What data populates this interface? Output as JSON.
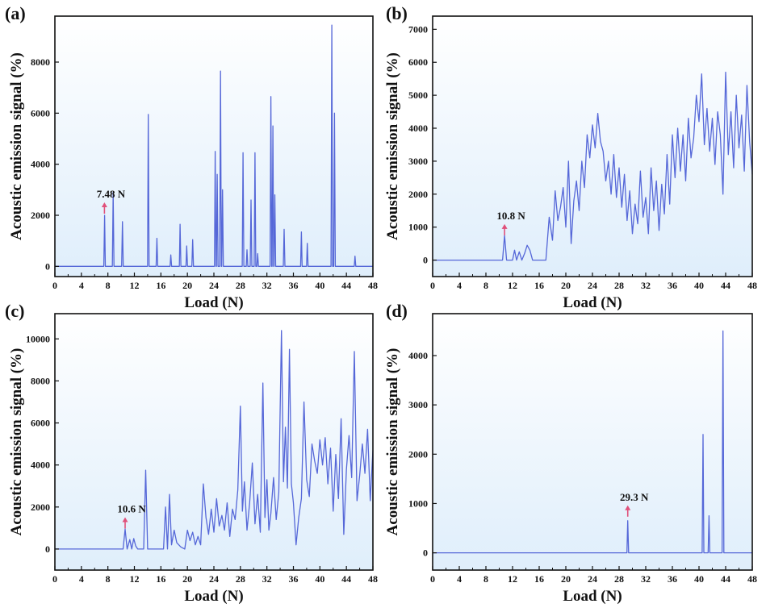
{
  "chart_data": [
    {
      "type": "line",
      "panel_label": "(a)",
      "xlabel": "Load (N)",
      "ylabel": "Acoustic emission signal (%)",
      "xlim": [
        0,
        48
      ],
      "ylim": [
        -400,
        9800
      ],
      "xticks": [
        0,
        4,
        8,
        12,
        16,
        20,
        24,
        28,
        32,
        36,
        40,
        44,
        48
      ],
      "yticks": [
        0,
        2000,
        4000,
        6000,
        8000
      ],
      "annotation": {
        "text": "7.48 N",
        "x": 7.48,
        "y": 2000
      },
      "peaks": [
        [
          7.5,
          2000
        ],
        [
          8.8,
          2900
        ],
        [
          10.2,
          1750
        ],
        [
          14.1,
          5950
        ],
        [
          15.4,
          1100
        ],
        [
          17.5,
          450
        ],
        [
          18.9,
          1650
        ],
        [
          19.9,
          800
        ],
        [
          20.8,
          1050
        ],
        [
          24.2,
          4500
        ],
        [
          24.5,
          3600
        ],
        [
          25.0,
          7650
        ],
        [
          25.3,
          3000
        ],
        [
          28.4,
          4450
        ],
        [
          29.0,
          650
        ],
        [
          29.6,
          2600
        ],
        [
          30.2,
          4450
        ],
        [
          30.6,
          500
        ],
        [
          32.6,
          6650
        ],
        [
          32.9,
          5500
        ],
        [
          33.2,
          2800
        ],
        [
          34.6,
          1450
        ],
        [
          37.2,
          1350
        ],
        [
          38.1,
          900
        ],
        [
          41.8,
          9450
        ],
        [
          42.2,
          6000
        ],
        [
          45.3,
          400
        ]
      ],
      "peak_width": 0.12
    },
    {
      "type": "line",
      "panel_label": "(b)",
      "xlabel": "Load (N)",
      "ylabel": "Acoustic emission signal (%)",
      "xlim": [
        0,
        48
      ],
      "ylim": [
        -500,
        7400
      ],
      "xticks": [
        0,
        4,
        8,
        12,
        16,
        20,
        24,
        28,
        32,
        36,
        40,
        44,
        48
      ],
      "yticks": [
        0,
        1000,
        2000,
        3000,
        4000,
        5000,
        6000,
        7000
      ],
      "annotation": {
        "text": "10.8 N",
        "x": 10.8,
        "y": 700
      },
      "x": [
        0,
        10.5,
        10.8,
        11.1,
        12.0,
        12.3,
        12.6,
        13.0,
        13.4,
        13.8,
        14.2,
        14.6,
        15.0,
        15.4,
        17.0,
        17.5,
        18.0,
        18.4,
        18.8,
        19.2,
        19.6,
        20.0,
        20.4,
        20.8,
        21.2,
        21.6,
        22.0,
        22.4,
        22.8,
        23.2,
        23.6,
        24.0,
        24.4,
        24.8,
        25.2,
        25.6,
        26.0,
        26.4,
        26.8,
        27.2,
        27.6,
        28.0,
        28.4,
        28.8,
        29.2,
        29.6,
        30.0,
        30.4,
        30.8,
        31.2,
        31.6,
        32.0,
        32.4,
        32.8,
        33.2,
        33.6,
        34.0,
        34.4,
        34.8,
        35.2,
        35.6,
        36.0,
        36.4,
        36.8,
        37.2,
        37.6,
        38.0,
        38.4,
        38.8,
        39.2,
        39.6,
        40.0,
        40.4,
        40.8,
        41.2,
        41.6,
        42.0,
        42.4,
        42.8,
        43.2,
        43.6,
        44.0,
        44.4,
        44.8,
        45.2,
        45.6,
        46.0,
        46.4,
        46.8,
        47.2,
        47.6,
        48.0
      ],
      "y": [
        0,
        0,
        750,
        0,
        0,
        300,
        0,
        250,
        0,
        200,
        450,
        300,
        0,
        0,
        0,
        1300,
        600,
        2100,
        1200,
        1600,
        2200,
        1000,
        3000,
        500,
        1800,
        2400,
        1500,
        3000,
        2200,
        3800,
        3100,
        4100,
        3400,
        4450,
        3600,
        3300,
        2400,
        3000,
        2000,
        3200,
        1900,
        2800,
        1600,
        2600,
        1200,
        2100,
        800,
        1700,
        1100,
        2700,
        1300,
        1900,
        800,
        2800,
        1500,
        2400,
        900,
        2300,
        1400,
        3200,
        1700,
        3800,
        2500,
        4000,
        2700,
        3800,
        2400,
        4300,
        3100,
        3700,
        5000,
        4200,
        5650,
        3500,
        4600,
        3300,
        4300,
        2900,
        4500,
        3800,
        2000,
        5700,
        3200,
        4500,
        2800,
        5000,
        3400,
        4400,
        2700,
        5300,
        3600,
        2600
      ]
    },
    {
      "type": "line",
      "panel_label": "(c)",
      "xlabel": "Load (N)",
      "ylabel": "Acoustic emission signal (%)",
      "xlim": [
        0,
        48
      ],
      "ylim": [
        -1000,
        11200
      ],
      "xticks": [
        0,
        4,
        8,
        12,
        16,
        20,
        24,
        28,
        32,
        36,
        40,
        44,
        48
      ],
      "yticks": [
        0,
        2000,
        4000,
        6000,
        8000,
        10000
      ],
      "annotation": {
        "text": "10.6 N",
        "x": 10.6,
        "y": 900
      },
      "x": [
        0,
        10.3,
        10.6,
        10.9,
        11.3,
        11.6,
        11.9,
        12.2,
        12.5,
        13.4,
        13.7,
        14.0,
        14.3,
        16.4,
        16.7,
        17.0,
        17.3,
        17.6,
        18.0,
        18.4,
        19.0,
        19.6,
        20.0,
        20.4,
        20.8,
        21.2,
        21.6,
        22.0,
        22.4,
        22.8,
        23.2,
        23.6,
        24.0,
        24.4,
        24.8,
        25.2,
        25.6,
        26.0,
        26.4,
        26.8,
        27.2,
        27.6,
        28.0,
        28.3,
        28.6,
        29.0,
        29.4,
        29.8,
        30.2,
        30.6,
        31.0,
        31.4,
        31.7,
        32.0,
        32.3,
        32.6,
        33.0,
        33.4,
        33.8,
        34.2,
        34.5,
        34.8,
        35.1,
        35.4,
        35.7,
        36.0,
        36.4,
        36.8,
        37.2,
        37.6,
        38.0,
        38.4,
        38.8,
        39.2,
        39.6,
        40.0,
        40.4,
        40.8,
        41.2,
        41.6,
        42.0,
        42.4,
        42.8,
        43.2,
        43.6,
        44.0,
        44.4,
        44.8,
        45.2,
        45.6,
        46.0,
        46.4,
        46.8,
        47.2,
        47.6,
        48.0
      ],
      "y": [
        0,
        0,
        950,
        0,
        450,
        0,
        500,
        150,
        0,
        0,
        3750,
        0,
        0,
        0,
        2000,
        0,
        2600,
        200,
        900,
        300,
        100,
        0,
        900,
        400,
        800,
        200,
        600,
        200,
        3100,
        1500,
        700,
        1900,
        800,
        2400,
        1100,
        1600,
        900,
        2200,
        600,
        1900,
        1400,
        2800,
        6800,
        1800,
        3200,
        900,
        2200,
        4100,
        1200,
        2600,
        800,
        7900,
        1500,
        3300,
        900,
        1700,
        3400,
        1400,
        2700,
        10400,
        3200,
        5800,
        2900,
        9500,
        3100,
        2200,
        200,
        1500,
        2400,
        7000,
        3300,
        2500,
        5000,
        4200,
        3600,
        5200,
        4000,
        5300,
        3100,
        4800,
        1800,
        4500,
        2400,
        6200,
        700,
        3800,
        5400,
        3400,
        9400,
        2300,
        3500,
        5000,
        3600,
        5700,
        2300,
        4700
      ]
    },
    {
      "type": "line",
      "panel_label": "(d)",
      "xlabel": "Load (N)",
      "ylabel": "Acoustic emission signal (%)",
      "xlim": [
        0,
        48
      ],
      "ylim": [
        -350,
        4850
      ],
      "xticks": [
        0,
        4,
        8,
        12,
        16,
        20,
        24,
        28,
        32,
        36,
        40,
        44,
        48
      ],
      "yticks": [
        0,
        1000,
        2000,
        3000,
        4000
      ],
      "annotation": {
        "text": "29.3 N",
        "x": 29.3,
        "y": 700
      },
      "peaks": [
        [
          29.3,
          650
        ],
        [
          40.6,
          2400
        ],
        [
          41.5,
          750
        ],
        [
          43.6,
          4500
        ]
      ],
      "peak_width": 0.13
    }
  ]
}
